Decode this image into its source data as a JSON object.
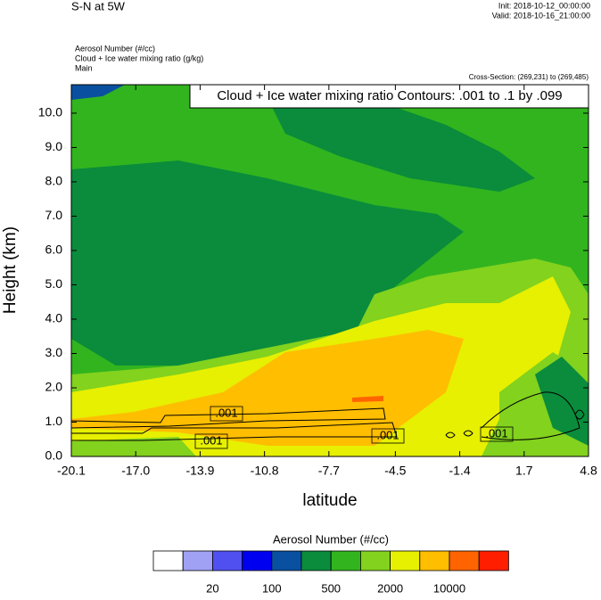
{
  "chart_data": {
    "type": "contour",
    "title": "S-N at 5W",
    "init_label": "Init: 2018-10-12_00:00:00",
    "valid_label": "Valid: 2018-10-16_21:00:00",
    "field_labels": [
      "Aerosol Number   (#/cc)",
      "Cloud + Ice water mixing ratio   (g/kg)",
      "Main"
    ],
    "cross_section": "Cross-Section: (269,231) to (269,485)",
    "contour_info": "Cloud + Ice water mixing ratio Contours: .001 to .1 by .099",
    "contour_labels": [
      ".001",
      ".001",
      ".001",
      ".001"
    ],
    "x_label": "latitude",
    "y_label": "Height (km)",
    "xlim": [
      -20.1,
      4.8
    ],
    "xticks": [
      -20.1,
      {
        "value": -17.0,
        "label": "-17.0"
      },
      -13.9,
      -10.8,
      -7.7,
      -4.5,
      -1.4,
      1.7,
      4.8
    ],
    "ylim": [
      0,
      10.83
    ],
    "yticks": [
      {
        "value": 0,
        "label": "0.0"
      },
      {
        "value": 1,
        "label": "1.0"
      },
      {
        "value": 2,
        "label": "2.0"
      },
      {
        "value": 3,
        "label": "3.0"
      },
      {
        "value": 4,
        "label": "4.0"
      },
      {
        "value": 5,
        "label": "5.0"
      },
      {
        "value": 6,
        "label": "6.0"
      },
      {
        "value": 7,
        "label": "7.0"
      },
      {
        "value": 8,
        "label": "8.0"
      },
      {
        "value": 9,
        "label": "9.0"
      },
      {
        "value": 10,
        "label": "10.0"
      }
    ],
    "colorbar": {
      "title": "Aerosol Number  (#/cc)",
      "colors": [
        "#ffffff",
        "#a0a0f5",
        "#5050f0",
        "#0000f0",
        "#0a50a0",
        "#0a8c3c",
        "#32b41e",
        "#82d21e",
        "#e6f000",
        "#ffbe00",
        "#ff6400",
        "#ff1e00"
      ],
      "labels": [
        20,
        100,
        500,
        2000,
        10000
      ]
    }
  }
}
